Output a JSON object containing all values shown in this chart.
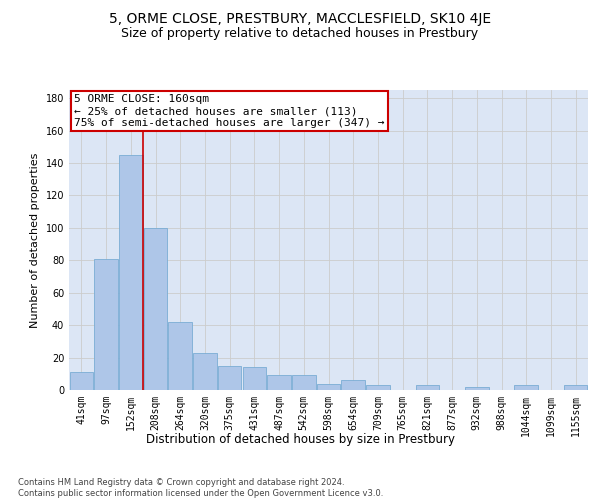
{
  "title1": "5, ORME CLOSE, PRESTBURY, MACCLESFIELD, SK10 4JE",
  "title2": "Size of property relative to detached houses in Prestbury",
  "xlabel": "Distribution of detached houses by size in Prestbury",
  "ylabel": "Number of detached properties",
  "categories": [
    "41sqm",
    "97sqm",
    "152sqm",
    "208sqm",
    "264sqm",
    "320sqm",
    "375sqm",
    "431sqm",
    "487sqm",
    "542sqm",
    "598sqm",
    "654sqm",
    "709sqm",
    "765sqm",
    "821sqm",
    "877sqm",
    "932sqm",
    "988sqm",
    "1044sqm",
    "1099sqm",
    "1155sqm"
  ],
  "values": [
    11,
    81,
    145,
    100,
    42,
    23,
    15,
    14,
    9,
    9,
    4,
    6,
    3,
    0,
    3,
    0,
    2,
    0,
    3,
    0,
    3
  ],
  "bar_color": "#aec6e8",
  "bar_edge_color": "#7aadd4",
  "vline_color": "#cc0000",
  "annotation_text": "5 ORME CLOSE: 160sqm\n← 25% of detached houses are smaller (113)\n75% of semi-detached houses are larger (347) →",
  "annotation_box_color": "#ffffff",
  "annotation_box_edge": "#cc0000",
  "ylim": [
    0,
    185
  ],
  "yticks": [
    0,
    20,
    40,
    60,
    80,
    100,
    120,
    140,
    160,
    180
  ],
  "grid_color": "#cccccc",
  "bg_color": "#dce6f5",
  "footnote": "Contains HM Land Registry data © Crown copyright and database right 2024.\nContains public sector information licensed under the Open Government Licence v3.0.",
  "title1_fontsize": 10,
  "title2_fontsize": 9,
  "xlabel_fontsize": 8.5,
  "ylabel_fontsize": 8,
  "tick_fontsize": 7,
  "annot_fontsize": 8
}
